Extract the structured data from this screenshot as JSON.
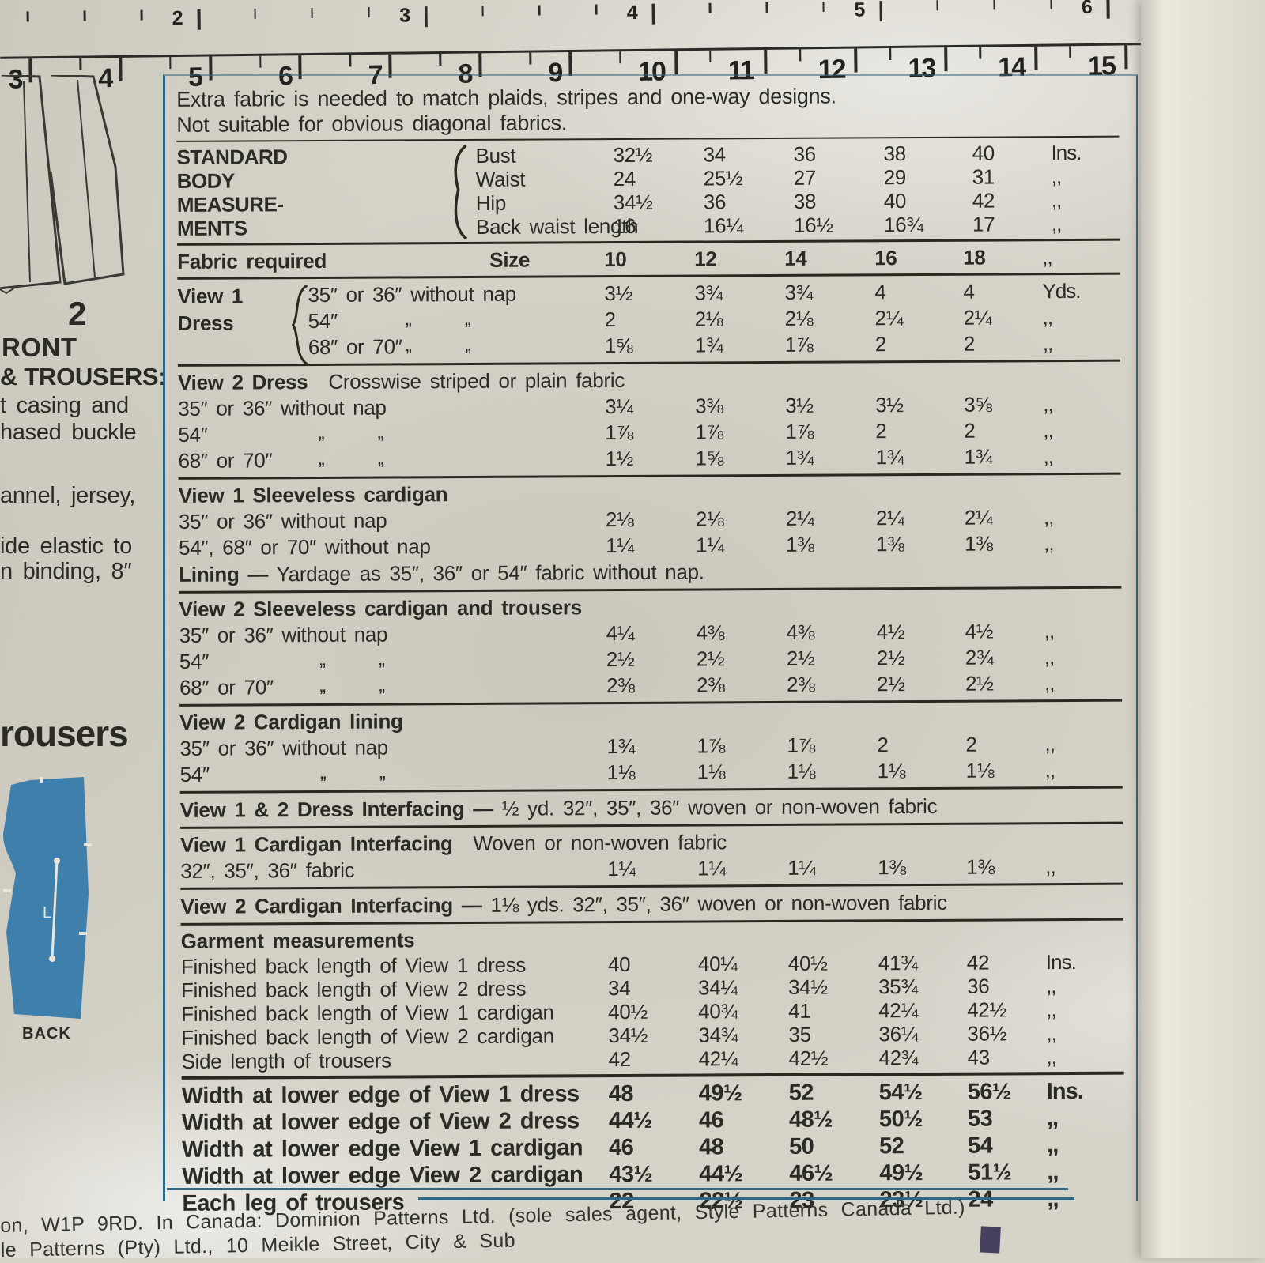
{
  "colors": {
    "paper": "#d6d3c9",
    "ink": "#2a281f",
    "blue_line": "#2d6884",
    "illustration_blue": "#3f7fab",
    "corner_mark": "#45415c"
  },
  "ruler": {
    "upper_numbers": [
      "2",
      "3",
      "4",
      "5",
      "6"
    ],
    "lower_numbers": [
      "3",
      "4",
      "5",
      "6",
      "7",
      "8",
      "9",
      "10",
      "11",
      "12",
      "13",
      "14",
      "15"
    ]
  },
  "left_column": {
    "front_number": "2",
    "front_label": "RONT",
    "trousers_heading": "& TROUSERS:",
    "line_casing": "t casing and",
    "line_buckle": "hased buckle",
    "line_jersey": "annel, jersey,",
    "line_elastic": "ide elastic to",
    "line_binding": "n binding, 8″",
    "rousers": "rousers",
    "back_label": "BACK",
    "l_mark": "L"
  },
  "table": {
    "ditto_mark": ",,",
    "intro_line1": "Extra fabric is needed to match plaids, stripes and one-way designs.",
    "intro_line2": "Not suitable for obvious diagonal fabrics.",
    "body_measurements": {
      "label_lines": [
        "STANDARD",
        "BODY",
        "MEASURE-",
        "MENTS"
      ],
      "rows": [
        {
          "name": "Bust",
          "values": [
            "32½",
            "34",
            "36",
            "38",
            "40"
          ],
          "unit": "Ins."
        },
        {
          "name": "Waist",
          "values": [
            "24",
            "25½",
            "27",
            "29",
            "31"
          ],
          "unit": ",,"
        },
        {
          "name": "Hip",
          "values": [
            "34½",
            "36",
            "38",
            "40",
            "42"
          ],
          "unit": ",,"
        },
        {
          "name": "Back waist length",
          "values": [
            "16",
            "16¼",
            "16½",
            "16¾",
            "17"
          ],
          "unit": ",,"
        }
      ]
    },
    "fabric_required": {
      "label": "Fabric required",
      "size_label": "Size",
      "sizes": [
        "10",
        "12",
        "14",
        "16",
        "18"
      ],
      "unit": ",,"
    },
    "view1_dress": {
      "title_lines": [
        "View 1",
        "Dress"
      ],
      "rows": [
        {
          "label": "35″ or 36″ without nap",
          "values": [
            "3½",
            "3¾",
            "3¾",
            "4",
            "4"
          ],
          "unit": "Yds."
        },
        {
          "label": "54″",
          "dittos": true,
          "values": [
            "2",
            "2⅛",
            "2⅛",
            "2¼",
            "2¼"
          ],
          "unit": ",,"
        },
        {
          "label": "68″ or 70″",
          "dittos": true,
          "values": [
            "1⅝",
            "1¾",
            "1⅞",
            "2",
            "2"
          ],
          "unit": ",,"
        }
      ]
    },
    "sections": [
      {
        "title": "View 2  Dress",
        "note": "Crosswise striped or plain fabric",
        "rows": [
          {
            "label": "35″ or 36″ without nap",
            "values": [
              "3¼",
              "3⅜",
              "3½",
              "3½",
              "3⅝"
            ],
            "unit": ",,"
          },
          {
            "label": "54″",
            "dittos": true,
            "values": [
              "1⅞",
              "1⅞",
              "1⅞",
              "2",
              "2"
            ],
            "unit": ",,"
          },
          {
            "label": "68″ or 70″",
            "dittos": true,
            "values": [
              "1½",
              "1⅝",
              "1¾",
              "1¾",
              "1¾"
            ],
            "unit": ",,"
          }
        ]
      },
      {
        "title": "View 1  Sleeveless cardigan",
        "note": "",
        "rows": [
          {
            "label": "35″ or 36″ without nap",
            "values": [
              "2⅛",
              "2⅛",
              "2¼",
              "2¼",
              "2¼"
            ],
            "unit": ",,"
          },
          {
            "label": "54″, 68″ or 70″ without nap",
            "values": [
              "1¼",
              "1¼",
              "1⅜",
              "1⅜",
              "1⅜"
            ],
            "unit": ",,"
          }
        ],
        "footnote_bold": "Lining —",
        "footnote": " Yardage as 35″, 36″ or 54″ fabric without nap."
      },
      {
        "title": "View 2  Sleeveless cardigan and trousers",
        "note": "",
        "rows": [
          {
            "label": "35″ or 36″ without nap",
            "values": [
              "4¼",
              "4⅜",
              "4⅜",
              "4½",
              "4½"
            ],
            "unit": ",,"
          },
          {
            "label": "54″",
            "dittos": true,
            "values": [
              "2½",
              "2½",
              "2½",
              "2½",
              "2¾"
            ],
            "unit": ",,"
          },
          {
            "label": "68″ or 70″",
            "dittos": true,
            "values": [
              "2⅜",
              "2⅜",
              "2⅜",
              "2½",
              "2½"
            ],
            "unit": ",,"
          }
        ]
      },
      {
        "title": "View 2  Cardigan lining",
        "note": "",
        "rows": [
          {
            "label": "35″ or 36″ without nap",
            "values": [
              "1¾",
              "1⅞",
              "1⅞",
              "2",
              "2"
            ],
            "unit": ",,"
          },
          {
            "label": "54″",
            "dittos": true,
            "values": [
              "1⅛",
              "1⅛",
              "1⅛",
              "1⅛",
              "1⅛"
            ],
            "unit": ",,"
          }
        ]
      }
    ],
    "interfacing": {
      "dress_line_bold": "View 1 & 2 Dress Interfacing —",
      "dress_line_rest": " ½ yd. 32″, 35″, 36″ woven or non-woven fabric",
      "card1_title": "View 1  Cardigan Interfacing",
      "card1_note": "Woven or non-woven fabric",
      "card1_rows": [
        {
          "label": "32″, 35″, 36″ fabric",
          "values": [
            "1¼",
            "1¼",
            "1¼",
            "1⅜",
            "1⅜"
          ],
          "unit": ",,"
        }
      ],
      "card2_bold": "View 2 Cardigan Interfacing —",
      "card2_rest": " 1⅛ yds. 32″, 35″, 36″ woven or non-woven fabric"
    },
    "garment": {
      "title": "Garment measurements",
      "rows": [
        {
          "label": "Finished back length of View 1 dress",
          "values": [
            "40",
            "40¼",
            "40½",
            "41¾",
            "42"
          ],
          "unit": "Ins."
        },
        {
          "label": "Finished back length of View 2 dress",
          "values": [
            "34",
            "34¼",
            "34½",
            "35¾",
            "36"
          ],
          "unit": ",,"
        },
        {
          "label": "Finished back length of View 1 cardigan",
          "values": [
            "40½",
            "40¾",
            "41",
            "42¼",
            "42½"
          ],
          "unit": ",,"
        },
        {
          "label": "Finished back length of View 2 cardigan",
          "values": [
            "34½",
            "34¾",
            "35",
            "36¼",
            "36½"
          ],
          "unit": ",,"
        },
        {
          "label": "Side length of trousers",
          "values": [
            "42",
            "42¼",
            "42½",
            "42¾",
            "43"
          ],
          "unit": ",,"
        }
      ]
    },
    "width_rows": [
      {
        "label": "Width at lower edge of View 1 dress",
        "values": [
          "48",
          "49½",
          "52",
          "54½",
          "56½"
        ],
        "unit": "Ins."
      },
      {
        "label": "Width at lower edge of View 2 dress",
        "values": [
          "44½",
          "46",
          "48½",
          "50½",
          "53"
        ],
        "unit": ",,"
      },
      {
        "label": "Width at lower edge View 1 cardigan",
        "values": [
          "46",
          "48",
          "50",
          "52",
          "54"
        ],
        "unit": ",,"
      },
      {
        "label": "Width at lower edge View 2 cardigan",
        "values": [
          "43½",
          "44½",
          "46½",
          "49½",
          "51½"
        ],
        "unit": ",,"
      },
      {
        "label": "Each leg of trousers",
        "values": [
          "22",
          "22½",
          "23",
          "23½",
          "24"
        ],
        "unit": ",,"
      }
    ]
  },
  "footer": {
    "line1": "on, W1P 9RD. In Canada: Dominion Patterns Ltd. (sole sales agent, Style Patterns Canada Ltd.)",
    "line2": "le Patterns (Pty) Ltd., 10 Meikle Street, City & Sub"
  }
}
